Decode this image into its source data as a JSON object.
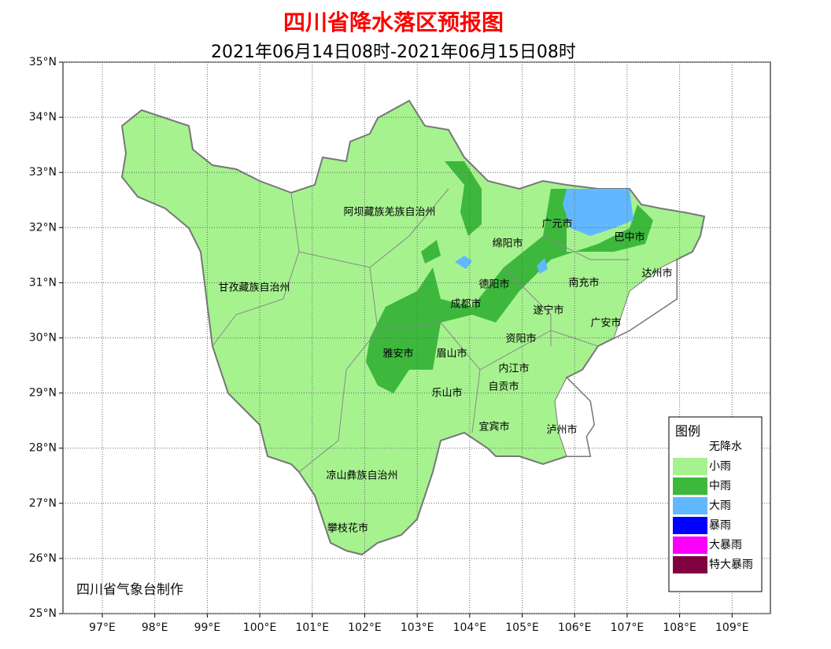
{
  "header": {
    "title": "四川省降水落区预报图",
    "subtitle": "2021年06月14日08时-2021年06月15日08时"
  },
  "map": {
    "xlim": [
      96.25,
      109.73
    ],
    "ylim": [
      25,
      35
    ],
    "lon_ticks": [
      {
        "value": 97,
        "label": "97°E"
      },
      {
        "value": 98,
        "label": "98°E"
      },
      {
        "value": 99,
        "label": "99°E"
      },
      {
        "value": 100,
        "label": "100°E"
      },
      {
        "value": 101,
        "label": "101°E"
      },
      {
        "value": 102,
        "label": "102°E"
      },
      {
        "value": 103,
        "label": "103°E"
      },
      {
        "value": 104,
        "label": "104°E"
      },
      {
        "value": 105,
        "label": "105°E"
      },
      {
        "value": 106,
        "label": "106°E"
      },
      {
        "value": 107,
        "label": "107°E"
      },
      {
        "value": 108,
        "label": "108°E"
      },
      {
        "value": 109,
        "label": "109°E"
      }
    ],
    "lat_ticks": [
      {
        "value": 25,
        "label": "25°N"
      },
      {
        "value": 26,
        "label": "26°N"
      },
      {
        "value": 27,
        "label": "27°N"
      },
      {
        "value": 28,
        "label": "28°N"
      },
      {
        "value": 29,
        "label": "29°N"
      },
      {
        "value": 30,
        "label": "30°N"
      },
      {
        "value": 31,
        "label": "31°N"
      },
      {
        "value": 32,
        "label": "32°N"
      },
      {
        "value": 33,
        "label": "33°N"
      },
      {
        "value": 34,
        "label": "34°N"
      },
      {
        "value": 35,
        "label": "35°N"
      }
    ],
    "regions": [
      "阿坝藏族羌族自治州",
      "甘孜藏族自治州",
      "绵阳市",
      "广元市",
      "巴中市",
      "达州市",
      "德阳市",
      "南充市",
      "成都市",
      "遂宁市",
      "广安市",
      "资阳市",
      "雅安市",
      "眉山市",
      "内江市",
      "自贡市",
      "乐山市",
      "宜宾市",
      "泸州市",
      "凉山彝族自治州",
      "攀枝花市"
    ]
  },
  "legend": {
    "title": "图例",
    "items": [
      {
        "label": "无降水",
        "color": "#ffffff"
      },
      {
        "label": "小雨",
        "color": "#a6f28f"
      },
      {
        "label": "中雨",
        "color": "#3db83d"
      },
      {
        "label": "大雨",
        "color": "#61b8ff"
      },
      {
        "label": "暴雨",
        "color": "#0000fe"
      },
      {
        "label": "大暴雨",
        "color": "#fa00fa"
      },
      {
        "label": "特大暴雨",
        "color": "#800040"
      }
    ]
  },
  "credit": "四川省气象台制作"
}
